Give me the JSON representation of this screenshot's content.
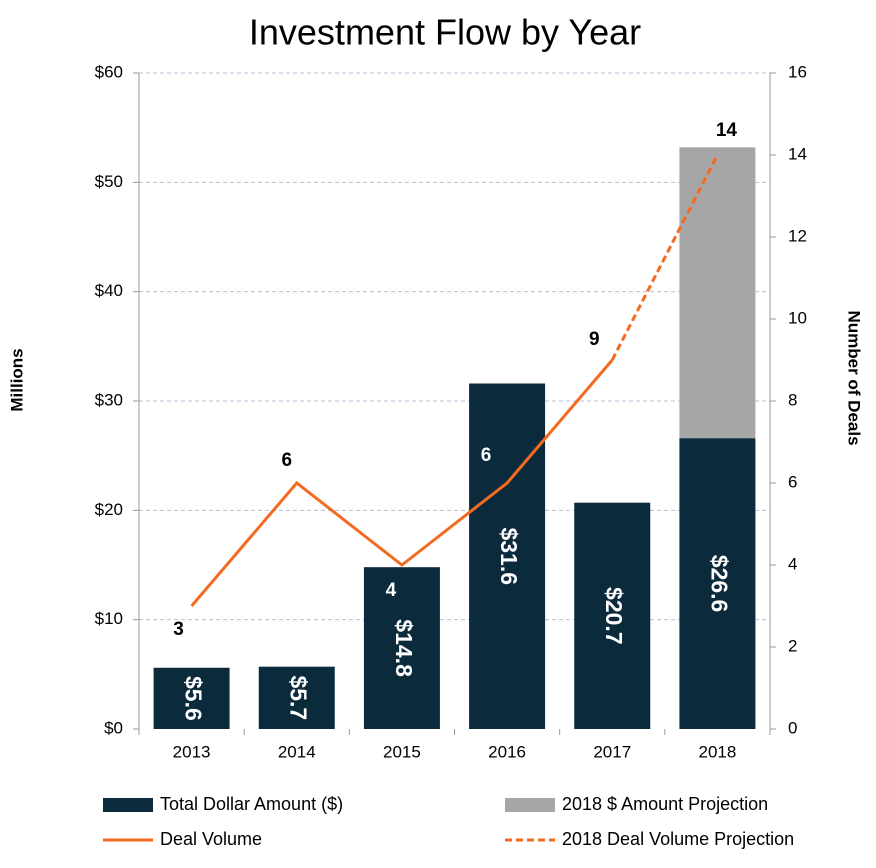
{
  "chart_data": {
    "type": "bar",
    "title": "Investment Flow by Year",
    "y_label": "Millions",
    "y2_label": "Number of Deals",
    "categories": [
      "2013",
      "2014",
      "2015",
      "2016",
      "2017",
      "2018"
    ],
    "ylim": [
      0,
      60
    ],
    "yticks": [
      {
        "value": 0,
        "label": "$0"
      },
      {
        "value": 10,
        "label": "$10"
      },
      {
        "value": 20,
        "label": "$20"
      },
      {
        "value": 30,
        "label": "$30"
      },
      {
        "value": 40,
        "label": "$40"
      },
      {
        "value": 50,
        "label": "$50"
      },
      {
        "value": 60,
        "label": "$60"
      }
    ],
    "y2lim": [
      0,
      16
    ],
    "y2ticks": [
      0,
      2,
      4,
      6,
      8,
      10,
      12,
      14,
      16
    ],
    "grid": true,
    "series": [
      {
        "name": "Total Dollar Amount ($)",
        "type": "bar",
        "color": "#0b2a3c",
        "values": [
          5.6,
          5.7,
          14.8,
          31.6,
          20.7,
          26.6
        ],
        "value_labels": [
          "$5.6",
          "$5.7",
          "$14.8",
          "$31.6",
          "$20.7",
          "$26.6"
        ]
      },
      {
        "name": "2018 $ Amount Projection",
        "type": "bar",
        "color": "#a6a6a6",
        "values": [
          null,
          null,
          null,
          null,
          null,
          26.6
        ]
      },
      {
        "name": "Deal Volume",
        "type": "line",
        "axis": "y2",
        "color": "#f26b21",
        "dashed": false,
        "values": [
          3,
          6,
          4,
          6,
          9,
          null
        ]
      },
      {
        "name": "2018 Deal Volume Projection",
        "type": "line",
        "axis": "y2",
        "color": "#f26b21",
        "dashed": true,
        "values": [
          null,
          null,
          null,
          null,
          9,
          14
        ]
      }
    ]
  }
}
